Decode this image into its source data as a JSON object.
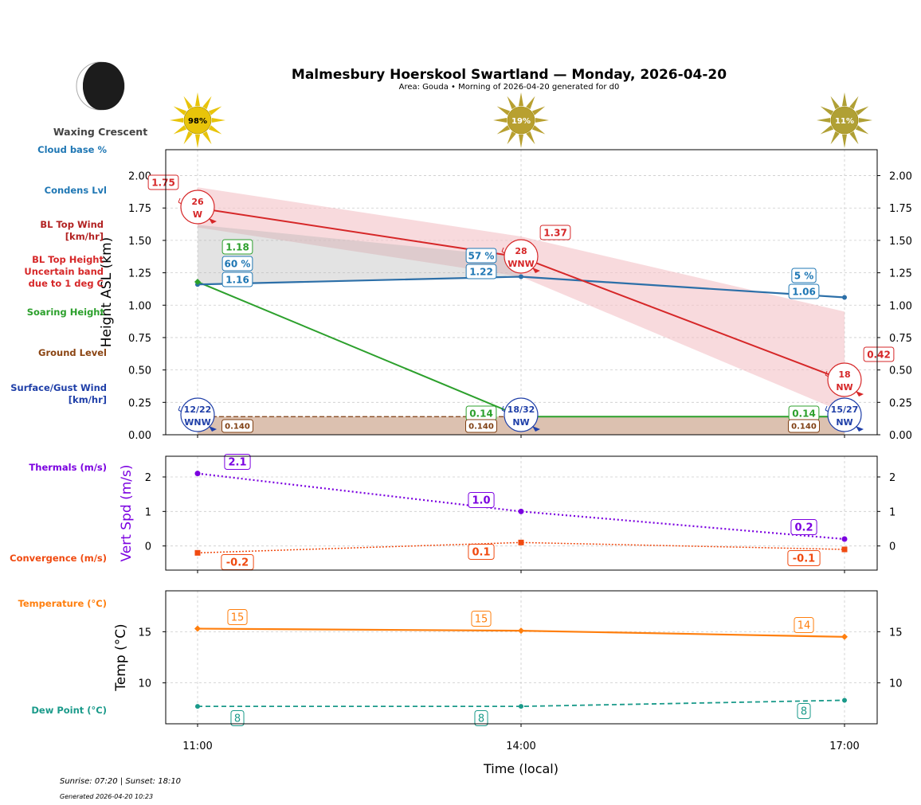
{
  "header": {
    "title": "Malmesbury Hoerskool Swartland — Monday, 2026-04-20",
    "subtitle": "Area: Gouda • Morning of 2026-04-20 generated for d0",
    "moon_phase": "Waxing Crescent"
  },
  "footer": {
    "sun_times": "Sunrise: 07:20 | Sunset: 18:10",
    "generated": "Generated 2026-04-20 10:23"
  },
  "side_labels": {
    "cloud_base": "Cloud base %",
    "condens": "Condens Lvl",
    "bl_wind": [
      "BL Top Wind",
      "[km/hr]"
    ],
    "bl_height": [
      "BL Top Height",
      "Uncertain band",
      "due to 1 deg C"
    ],
    "soaring": "Soaring Height",
    "ground": "Ground Level",
    "surface_wind": [
      "Surface/Gust Wind",
      "[km/hr]"
    ],
    "thermals": "Thermals (m/s)",
    "convergence": "Convergence (m/s)",
    "temperature": "Temperature (°C)",
    "dew_point": "Dew Point (°C)"
  },
  "colors": {
    "bl_top": "#d62728",
    "band": "#f4c2c6",
    "condens": "#2c6fa8",
    "cloud": "#1f77b4",
    "soaring": "#2ca02c",
    "ground": "#7f3f12",
    "ground_fill": "#dcc1b0",
    "surface": "#1f3fa8",
    "thermal": "#7b00e0",
    "convergence": "#f04a10",
    "temp": "#ff7f0e",
    "dew": "#1a9a8a"
  },
  "chart_data": [
    {
      "type": "line",
      "title": "Malmesbury Hoerskool Swartland — Monday, 2026-04-20",
      "ylabel": "Height ASL (km)",
      "x": [
        "11:00",
        "14:00",
        "17:00"
      ],
      "ylim": [
        0,
        2.2
      ],
      "yticks": [
        "0.00",
        "0.25",
        "0.50",
        "0.75",
        "1.00",
        "1.25",
        "1.50",
        "1.75",
        "2.00"
      ],
      "sun_percent": [
        "98%",
        "19%",
        "11%"
      ],
      "bl_top": {
        "values": [
          1.75,
          1.37,
          0.42
        ],
        "labels": [
          "1.75",
          "1.37",
          "0.42"
        ]
      },
      "bl_band_upper": [
        1.91,
        1.53,
        0.95
      ],
      "bl_band_lower": [
        1.6,
        1.22,
        0.17
      ],
      "bl_top_wind": {
        "speed": [
          "26",
          "28",
          "18"
        ],
        "dir": [
          "W",
          "WNW",
          "NW"
        ]
      },
      "condens": {
        "values": [
          1.16,
          1.22,
          1.06
        ],
        "labels": [
          "1.16",
          "1.22",
          "1.06"
        ]
      },
      "cloud_base_pct": [
        "60 %",
        "57 %",
        "5 %"
      ],
      "soaring": {
        "values": [
          1.18,
          0.14,
          0.14
        ],
        "labels": [
          "1.18",
          "0.14",
          "0.14"
        ]
      },
      "ground": {
        "values": [
          0.14,
          0.14,
          0.14
        ],
        "labels": [
          "0.140",
          "0.140",
          "0.140"
        ]
      },
      "surface_wind": {
        "speed": [
          "12/22",
          "18/32",
          "15/27"
        ],
        "dir": [
          "WNW",
          "NW",
          "NW"
        ]
      }
    },
    {
      "type": "line",
      "ylabel": "Vert Spd (m/s)",
      "ylim": [
        -0.7,
        2.6
      ],
      "yticks": [
        "0",
        "1",
        "2"
      ],
      "series": [
        {
          "name": "Thermals (m/s)",
          "values": [
            2.1,
            1.0,
            0.2
          ],
          "labels": [
            "2.1",
            "1.0",
            "0.2"
          ]
        },
        {
          "name": "Convergence (m/s)",
          "values": [
            -0.2,
            0.1,
            -0.1
          ],
          "labels": [
            "-0.2",
            "0.1",
            "-0.1"
          ]
        }
      ]
    },
    {
      "type": "line",
      "ylabel": "Temp (°C)",
      "xlabel": "Time (local)",
      "ylim": [
        6.0,
        19.0
      ],
      "yticks": [
        "10",
        "15"
      ],
      "series": [
        {
          "name": "Temperature (°C)",
          "values": [
            15.3,
            15.1,
            14.5
          ],
          "labels": [
            "15",
            "15",
            "14"
          ]
        },
        {
          "name": "Dew Point (°C)",
          "values": [
            7.7,
            7.7,
            8.3
          ],
          "labels": [
            "8",
            "8",
            "8"
          ]
        }
      ]
    }
  ]
}
